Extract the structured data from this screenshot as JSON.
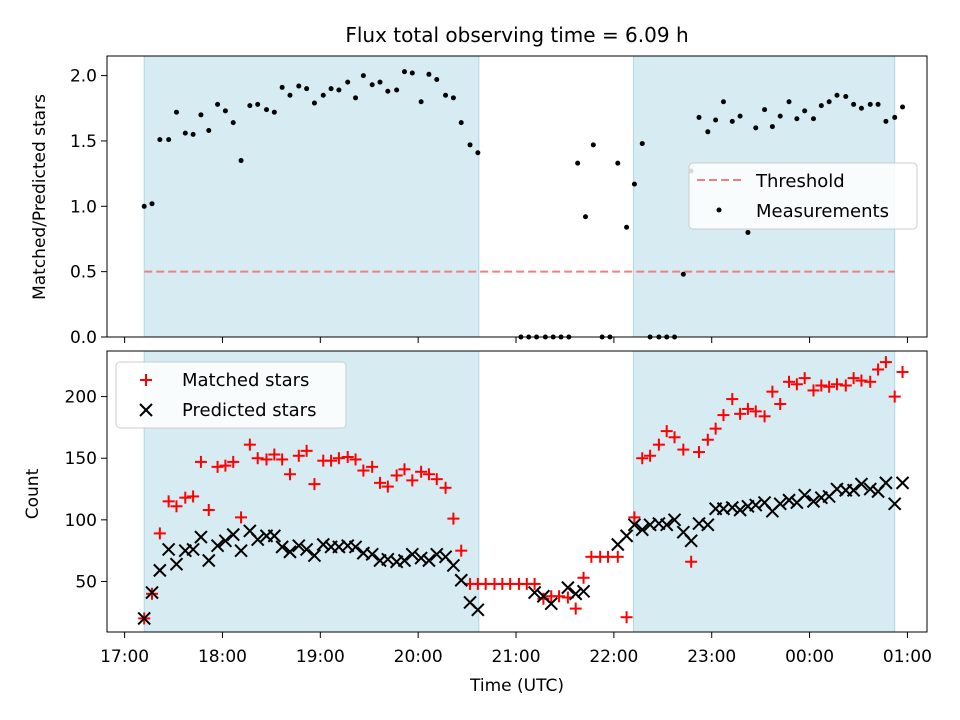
{
  "figure": {
    "title": "Flux total observing time = 6.09 h"
  },
  "chart_data": [
    {
      "type": "scatter",
      "panel": "top",
      "title": "Flux total observing time = 6.09 h",
      "xlabel": "",
      "ylabel": "Matched/Predicted stars",
      "x_unit": "hours since 17:00 UTC",
      "xlim": [
        -0.18,
        8.2
      ],
      "ylim": [
        0,
        2.15
      ],
      "yticks": [
        0.0,
        0.5,
        1.0,
        1.5,
        2.0
      ],
      "ytick_labels": [
        "0.0",
        "0.5",
        "1.0",
        "1.5",
        "2.0"
      ],
      "grid": false,
      "legend_position": "center-right",
      "shaded_regions": [
        {
          "x_start": 0.2,
          "x_end": 3.62,
          "color": "#add8e6"
        },
        {
          "x_start": 5.2,
          "x_end": 7.87,
          "color": "#add8e6"
        }
      ],
      "series": [
        {
          "name": "Threshold",
          "style": "dashed-line",
          "color": "#f08080",
          "x": [
            0.2,
            7.87
          ],
          "y": [
            0.5,
            0.5
          ]
        },
        {
          "name": "Measurements",
          "style": "dot",
          "color": "#000000",
          "x": [
            0.2,
            0.28,
            0.36,
            0.45,
            0.53,
            0.62,
            0.7,
            0.78,
            0.86,
            0.95,
            1.03,
            1.11,
            1.19,
            1.28,
            1.36,
            1.45,
            1.53,
            1.61,
            1.69,
            1.78,
            1.86,
            1.94,
            2.03,
            2.11,
            2.19,
            2.28,
            2.36,
            2.44,
            2.53,
            2.61,
            2.69,
            2.78,
            2.86,
            2.94,
            3.03,
            3.11,
            3.19,
            3.28,
            3.36,
            3.44,
            3.53,
            3.61,
            4.05,
            4.13,
            4.21,
            4.3,
            4.38,
            4.46,
            4.54,
            4.63,
            4.71,
            4.79,
            4.88,
            4.96,
            5.04,
            5.13,
            5.21,
            5.29,
            5.37,
            5.46,
            5.54,
            5.62,
            5.71,
            5.79,
            5.87,
            5.96,
            6.04,
            6.12,
            6.21,
            6.29,
            6.37,
            6.45,
            6.54,
            6.62,
            6.7,
            6.79,
            6.87,
            6.95,
            7.04,
            7.12,
            7.2,
            7.28,
            7.37,
            7.45,
            7.53,
            7.62,
            7.7,
            7.78,
            7.87,
            7.95
          ],
          "y": [
            1.0,
            1.02,
            1.51,
            1.51,
            1.72,
            1.56,
            1.55,
            1.7,
            1.58,
            1.78,
            1.73,
            1.64,
            1.35,
            1.77,
            1.78,
            1.74,
            1.72,
            1.91,
            1.85,
            1.92,
            1.9,
            1.79,
            1.85,
            1.9,
            1.89,
            1.95,
            1.83,
            2.0,
            1.93,
            1.95,
            1.88,
            1.89,
            2.03,
            2.02,
            1.8,
            2.01,
            1.97,
            1.85,
            1.83,
            1.64,
            1.47,
            1.41,
            0.0,
            0.0,
            0.0,
            0.0,
            0.0,
            0.0,
            0.0,
            1.33,
            0.92,
            1.47,
            0.0,
            0.0,
            1.33,
            0.84,
            1.17,
            1.48,
            0.0,
            0.0,
            0.0,
            0.0,
            0.48,
            1.27,
            1.68,
            1.57,
            1.66,
            1.8,
            1.65,
            1.69,
            0.8,
            1.6,
            1.74,
            1.61,
            1.69,
            1.8,
            1.67,
            1.73,
            1.67,
            1.77,
            1.8,
            1.85,
            1.84,
            1.78,
            1.75,
            1.78,
            1.78,
            1.65,
            1.68,
            1.76
          ]
        }
      ],
      "legend": [
        "Threshold",
        "Measurements"
      ]
    },
    {
      "type": "scatter",
      "panel": "bottom",
      "title": "",
      "xlabel": "Time (UTC)",
      "ylabel": "Count",
      "x_unit": "hours since 17:00 UTC",
      "xlim": [
        -0.18,
        8.2
      ],
      "ylim": [
        9,
        237
      ],
      "xticks": [
        0,
        1,
        2,
        3,
        4,
        5,
        6,
        7,
        8
      ],
      "xtick_labels": [
        "17:00",
        "18:00",
        "19:00",
        "20:00",
        "21:00",
        "22:00",
        "23:00",
        "00:00",
        "01:00"
      ],
      "yticks": [
        50,
        100,
        150,
        200
      ],
      "ytick_labels": [
        "50",
        "100",
        "150",
        "200"
      ],
      "grid": false,
      "legend_position": "top-left",
      "shaded_regions": [
        {
          "x_start": 0.2,
          "x_end": 3.62,
          "color": "#add8e6"
        },
        {
          "x_start": 5.2,
          "x_end": 7.87,
          "color": "#add8e6"
        }
      ],
      "series": [
        {
          "name": "Matched stars",
          "marker": "+",
          "color": "#ff0000",
          "x": [
            0.2,
            0.28,
            0.36,
            0.45,
            0.53,
            0.62,
            0.7,
            0.78,
            0.86,
            0.95,
            1.03,
            1.11,
            1.19,
            1.28,
            1.36,
            1.45,
            1.53,
            1.61,
            1.69,
            1.78,
            1.86,
            1.94,
            2.03,
            2.11,
            2.19,
            2.28,
            2.36,
            2.44,
            2.53,
            2.61,
            2.69,
            2.78,
            2.86,
            2.94,
            3.03,
            3.11,
            3.19,
            3.28,
            3.36,
            3.44,
            3.53,
            3.61,
            3.69,
            3.78,
            3.86,
            3.94,
            4.03,
            4.11,
            4.19,
            4.28,
            4.36,
            4.44,
            4.53,
            4.61,
            4.69,
            4.77,
            4.86,
            4.94,
            5.04,
            5.13,
            5.21,
            5.29,
            5.37,
            5.46,
            5.54,
            5.62,
            5.71,
            5.79,
            5.87,
            5.96,
            6.04,
            6.12,
            6.21,
            6.29,
            6.37,
            6.45,
            6.54,
            6.62,
            6.7,
            6.79,
            6.87,
            6.95,
            7.04,
            7.12,
            7.2,
            7.28,
            7.37,
            7.45,
            7.53,
            7.62,
            7.7,
            7.78,
            7.87,
            7.95
          ],
          "y": [
            20,
            40,
            89,
            115,
            111,
            118,
            119,
            147,
            108,
            143,
            144,
            147,
            102,
            161,
            150,
            149,
            153,
            149,
            137,
            152,
            156,
            129,
            148,
            148,
            150,
            151,
            149,
            140,
            143,
            130,
            127,
            136,
            141,
            132,
            139,
            137,
            133,
            126,
            101,
            75,
            48,
            48,
            48,
            48,
            48,
            48,
            48,
            48,
            48,
            36,
            38,
            38,
            37,
            28,
            53,
            70,
            70,
            70,
            70,
            21,
            102,
            150,
            152,
            161,
            172,
            167,
            157,
            66,
            155,
            165,
            174,
            185,
            198,
            186,
            190,
            188,
            184,
            204,
            194,
            212,
            210,
            215,
            205,
            209,
            208,
            210,
            209,
            215,
            213,
            212,
            222,
            228,
            200,
            220
          ]
        },
        {
          "name": "Predicted stars",
          "marker": "x",
          "color": "#000000",
          "x": [
            0.2,
            0.28,
            0.36,
            0.45,
            0.53,
            0.62,
            0.7,
            0.78,
            0.86,
            0.95,
            1.03,
            1.11,
            1.19,
            1.28,
            1.36,
            1.45,
            1.53,
            1.61,
            1.69,
            1.78,
            1.86,
            1.94,
            2.03,
            2.11,
            2.19,
            2.28,
            2.36,
            2.44,
            2.53,
            2.61,
            2.69,
            2.78,
            2.86,
            2.94,
            3.03,
            3.11,
            3.19,
            3.28,
            3.36,
            3.44,
            3.53,
            3.61,
            4.19,
            4.28,
            4.36,
            4.53,
            4.61,
            4.69,
            5.04,
            5.13,
            5.21,
            5.29,
            5.37,
            5.46,
            5.54,
            5.62,
            5.71,
            5.79,
            5.87,
            5.96,
            6.04,
            6.12,
            6.21,
            6.29,
            6.37,
            6.45,
            6.54,
            6.62,
            6.7,
            6.79,
            6.87,
            6.95,
            7.04,
            7.12,
            7.2,
            7.28,
            7.37,
            7.45,
            7.53,
            7.62,
            7.7,
            7.78,
            7.87,
            7.95
          ],
          "y": [
            20,
            41,
            59,
            76,
            64,
            75,
            76,
            86,
            67,
            79,
            83,
            88,
            75,
            91,
            84,
            87,
            87,
            78,
            74,
            79,
            76,
            71,
            80,
            78,
            78,
            79,
            78,
            73,
            72,
            67,
            68,
            66,
            67,
            72,
            69,
            67,
            72,
            70,
            63,
            51,
            33,
            27,
            41,
            38,
            32,
            45,
            40,
            42,
            80,
            87,
            96,
            92,
            96,
            97,
            96,
            100,
            90,
            83,
            97,
            96,
            109,
            109,
            110,
            108,
            111,
            112,
            114,
            107,
            113,
            116,
            114,
            120,
            115,
            118,
            119,
            125,
            124,
            124,
            129,
            125,
            123,
            130,
            113,
            130
          ]
        }
      ],
      "legend": [
        "Matched stars",
        "Predicted stars"
      ]
    }
  ]
}
